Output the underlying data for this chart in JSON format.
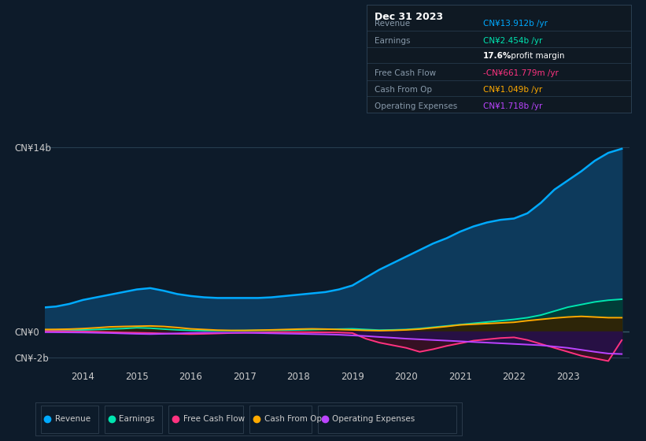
{
  "bg_color": "#0d1b2a",
  "plot_bg_color": "#0d1b2a",
  "grid_color": "#263d4f",
  "ylim": [
    -2.8,
    15.5
  ],
  "ytick_vals": [
    -2,
    0,
    14
  ],
  "ytick_labels": [
    "CN¥-2b",
    "CN¥0",
    "CN¥14b"
  ],
  "xtick_vals": [
    2014,
    2015,
    2016,
    2017,
    2018,
    2019,
    2020,
    2021,
    2022,
    2023
  ],
  "xtick_labels": [
    "2014",
    "2015",
    "2016",
    "2017",
    "2018",
    "2019",
    "2020",
    "2021",
    "2022",
    "2023"
  ],
  "years": [
    2013.2,
    2013.5,
    2013.75,
    2014.0,
    2014.25,
    2014.5,
    2014.75,
    2015.0,
    2015.25,
    2015.5,
    2015.75,
    2016.0,
    2016.25,
    2016.5,
    2016.75,
    2017.0,
    2017.25,
    2017.5,
    2017.75,
    2018.0,
    2018.25,
    2018.5,
    2018.75,
    2019.0,
    2019.25,
    2019.5,
    2019.75,
    2020.0,
    2020.25,
    2020.5,
    2020.75,
    2021.0,
    2021.25,
    2021.5,
    2021.75,
    2022.0,
    2022.25,
    2022.5,
    2022.75,
    2023.0,
    2023.25,
    2023.5,
    2023.75,
    2024.0
  ],
  "revenue": [
    1.8,
    1.9,
    2.1,
    2.4,
    2.6,
    2.8,
    3.0,
    3.2,
    3.3,
    3.1,
    2.85,
    2.7,
    2.6,
    2.55,
    2.55,
    2.55,
    2.55,
    2.6,
    2.7,
    2.8,
    2.9,
    3.0,
    3.2,
    3.5,
    4.1,
    4.7,
    5.2,
    5.7,
    6.2,
    6.7,
    7.1,
    7.6,
    8.0,
    8.3,
    8.5,
    8.6,
    9.0,
    9.8,
    10.8,
    11.5,
    12.2,
    13.0,
    13.6,
    13.912
  ],
  "earnings": [
    0.08,
    0.09,
    0.1,
    0.12,
    0.15,
    0.18,
    0.22,
    0.28,
    0.25,
    0.18,
    0.12,
    0.08,
    0.06,
    0.06,
    0.06,
    0.07,
    0.08,
    0.09,
    0.1,
    0.12,
    0.14,
    0.16,
    0.18,
    0.2,
    0.15,
    0.1,
    0.12,
    0.15,
    0.22,
    0.32,
    0.42,
    0.52,
    0.62,
    0.72,
    0.82,
    0.92,
    1.05,
    1.25,
    1.55,
    1.85,
    2.05,
    2.25,
    2.38,
    2.454
  ],
  "free_cash_flow": [
    0.04,
    0.03,
    0.02,
    0.0,
    -0.02,
    -0.05,
    -0.08,
    -0.1,
    -0.12,
    -0.15,
    -0.18,
    -0.2,
    -0.18,
    -0.15,
    -0.12,
    -0.1,
    -0.08,
    -0.06,
    -0.05,
    -0.05,
    -0.06,
    -0.07,
    -0.08,
    -0.12,
    -0.55,
    -0.85,
    -1.05,
    -1.25,
    -1.55,
    -1.35,
    -1.1,
    -0.9,
    -0.7,
    -0.6,
    -0.5,
    -0.45,
    -0.65,
    -0.95,
    -1.25,
    -1.55,
    -1.85,
    -2.05,
    -2.25,
    -0.662
  ],
  "cash_from_op": [
    0.15,
    0.16,
    0.18,
    0.22,
    0.28,
    0.35,
    0.38,
    0.4,
    0.42,
    0.38,
    0.3,
    0.2,
    0.15,
    0.1,
    0.08,
    0.08,
    0.1,
    0.12,
    0.15,
    0.18,
    0.2,
    0.18,
    0.15,
    0.12,
    0.08,
    0.06,
    0.08,
    0.12,
    0.18,
    0.28,
    0.38,
    0.5,
    0.55,
    0.6,
    0.65,
    0.7,
    0.82,
    0.92,
    1.02,
    1.1,
    1.15,
    1.1,
    1.05,
    1.049
  ],
  "operating_expenses": [
    -0.05,
    -0.06,
    -0.07,
    -0.08,
    -0.1,
    -0.12,
    -0.15,
    -0.18,
    -0.2,
    -0.18,
    -0.15,
    -0.12,
    -0.1,
    -0.1,
    -0.1,
    -0.1,
    -0.12,
    -0.14,
    -0.16,
    -0.18,
    -0.2,
    -0.22,
    -0.25,
    -0.3,
    -0.35,
    -0.42,
    -0.48,
    -0.55,
    -0.6,
    -0.65,
    -0.7,
    -0.75,
    -0.8,
    -0.85,
    -0.9,
    -0.95,
    -1.0,
    -1.05,
    -1.15,
    -1.25,
    -1.4,
    -1.55,
    -1.68,
    1.718
  ],
  "revenue_color": "#00aaff",
  "earnings_color": "#00e5b0",
  "fcf_color": "#ff3380",
  "cashop_color": "#ffaa00",
  "opex_color": "#bb44ff",
  "revenue_fill": "#0d3a5c",
  "earnings_fill": "#003d35",
  "fcf_fill": "#3d0f22",
  "cashop_fill": "#352200",
  "opex_fill": "#25104a",
  "info_box_bg": "#0f1923",
  "info_box_border": "#2a3f52",
  "text_color_dim": "#8899aa",
  "text_color": "#cccccc",
  "legend_bg": "#0d1b2a",
  "legend_border": "#2a3a4a",
  "info_title": "Dec 31 2023",
  "info_rows": [
    {
      "label": "Revenue",
      "value": "CN¥13.912b /yr",
      "color": "#00aaff",
      "bold_prefix": ""
    },
    {
      "label": "Earnings",
      "value": "CN¥2.454b /yr",
      "color": "#00e5b0",
      "bold_prefix": ""
    },
    {
      "label": "",
      "value": " profit margin",
      "color": "#cccccc",
      "bold_prefix": "17.6%"
    },
    {
      "label": "Free Cash Flow",
      "value": "CN¥661.779m /yr",
      "color": "#ff3380",
      "bold_prefix": "-"
    },
    {
      "label": "Cash From Op",
      "value": "CN¥1.049b /yr",
      "color": "#ffaa00",
      "bold_prefix": ""
    },
    {
      "label": "Operating Expenses",
      "value": "CN¥1.718b /yr",
      "color": "#bb44ff",
      "bold_prefix": ""
    }
  ],
  "legend_items": [
    {
      "label": "Revenue",
      "color": "#00aaff"
    },
    {
      "label": "Earnings",
      "color": "#00e5b0"
    },
    {
      "label": "Free Cash Flow",
      "color": "#ff3380"
    },
    {
      "label": "Cash From Op",
      "color": "#ffaa00"
    },
    {
      "label": "Operating Expenses",
      "color": "#bb44ff"
    }
  ]
}
